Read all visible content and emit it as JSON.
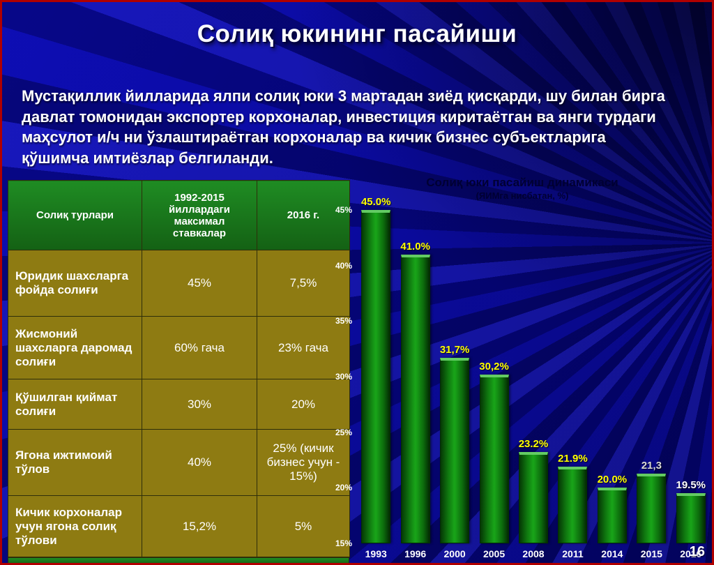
{
  "slide": {
    "title": "Солиқ юкининг пасайиши",
    "paragraph": "Мустақиллик йилларида ялпи солиқ юки 3 мартадан зиёд қисқарди, шу билан бирга давлат томонидан экспортер корхоналар, инвестиция киритаётган ва янги турдаги маҳсулот и/ч ни ўзлаштираётган корхоналар ва кичик бизнес субъектларига қўшимча имтиёзлар белгиланди.",
    "page_number": "16",
    "colors": {
      "background": "#0707a0",
      "frame_border": "#b00000",
      "title_text": "#ffffff"
    }
  },
  "table": {
    "headers": [
      "Солиқ турлари",
      "1992-2015 йиллардаги максимал ставкалар",
      "2016 г."
    ],
    "rows": [
      [
        "Юридик шахсларга фойда солиғи",
        "45%",
        "7,5%"
      ],
      [
        "Жисмоний шахсларга даромад солиғи",
        "60% гача",
        "23% гача"
      ],
      [
        "Қўшилган қиймат солиғи",
        "30%",
        "20%"
      ],
      [
        "Ягона ижтимоий тўлов",
        "40%",
        "25% (кичик бизнес учун - 15%)"
      ],
      [
        "Кичик корхоналар учун ягона солиқ тўлови",
        "15,2%",
        "5%"
      ]
    ],
    "colors": {
      "header_bg": "#1a7a1e",
      "body_bg": "#8e7b12",
      "text": "#ffffff"
    }
  },
  "chart_data": {
    "type": "bar",
    "title": "Солиқ юки пасайиш динамикаси",
    "subtitle": "(ЯИМга нисбатан, %)",
    "categories": [
      "1993",
      "1996",
      "2000",
      "2005",
      "2008",
      "2011",
      "2014",
      "2015",
      "2016"
    ],
    "values": [
      45.0,
      41.0,
      31.7,
      30.2,
      23.2,
      21.9,
      20.0,
      21.3,
      19.5
    ],
    "labels": [
      "45.0%",
      "41.0%",
      "31,7%",
      "30,2%",
      "23.2%",
      "21.9%",
      "20.0%",
      "21,3",
      "19.5%"
    ],
    "label_colors": [
      "#ffff00",
      "#ffff00",
      "#ffff00",
      "#ffff00",
      "#ffff00",
      "#ffff00",
      "#ffff00",
      "#d9d9d9",
      "#ffffff"
    ],
    "y_ticks": [
      "45%",
      "40%",
      "35%",
      "30%",
      "25%",
      "20%",
      "15%"
    ],
    "ylim": [
      15,
      45
    ],
    "xlabel": "",
    "ylabel": "",
    "grid": false,
    "legend": false,
    "bar_color": "#19a519",
    "value_label_color_main": "#ffff00"
  }
}
